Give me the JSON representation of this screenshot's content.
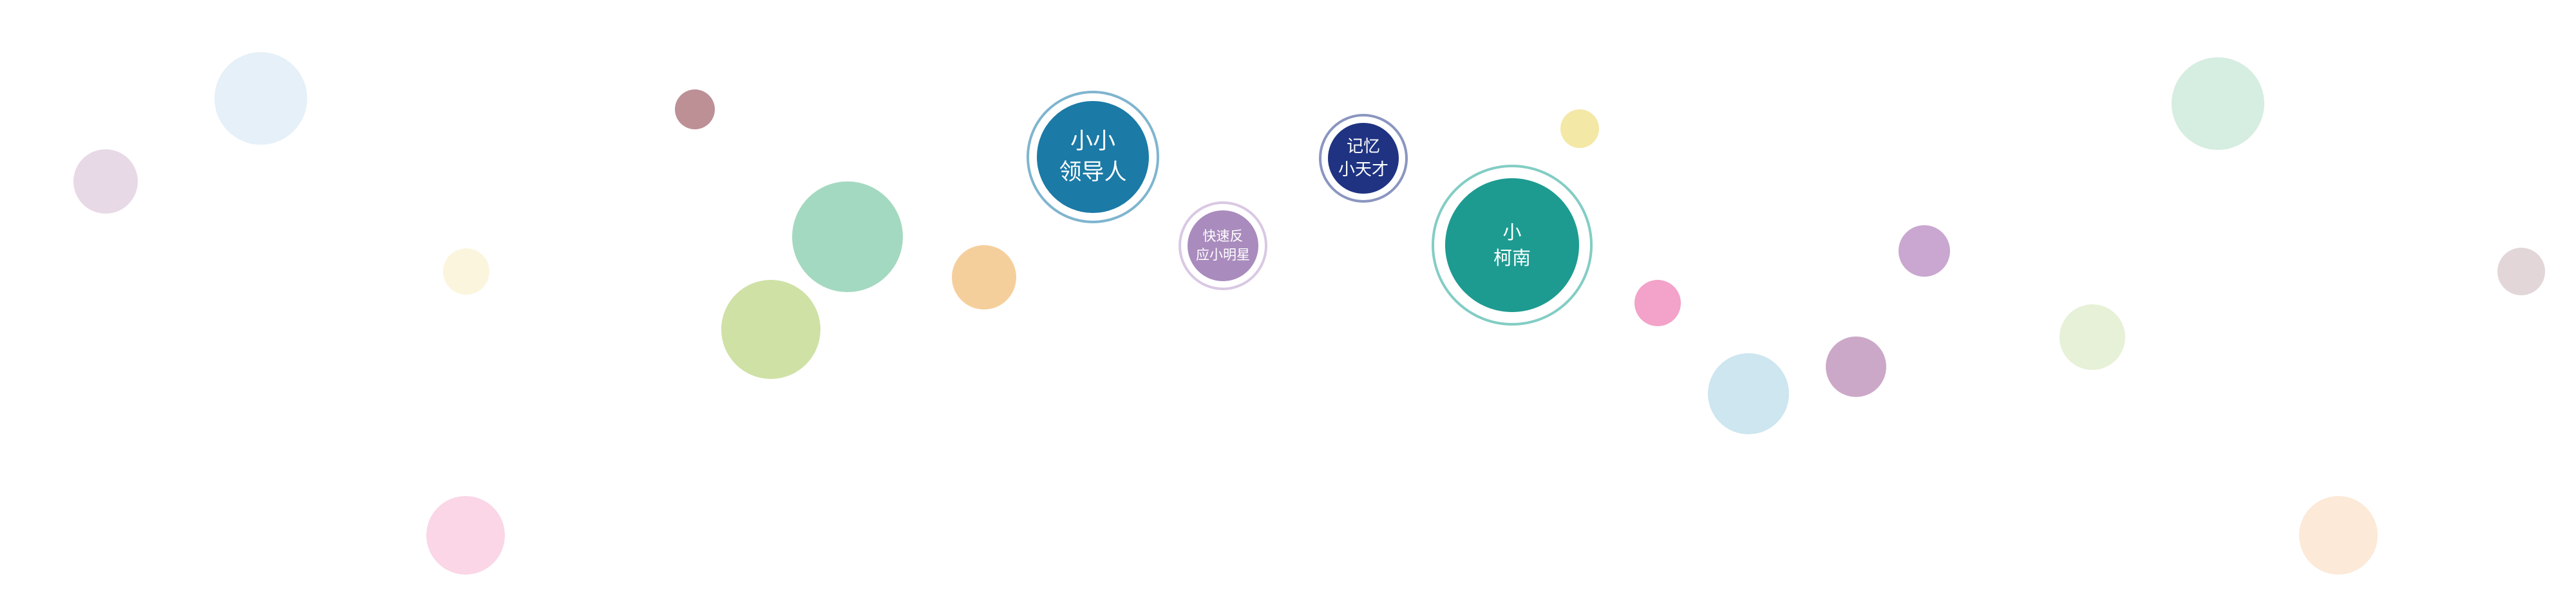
{
  "badges": {
    "leader": {
      "line1": "小小",
      "line2": "领导人",
      "color": "#1b7aa6",
      "ring_color": "#7fb5cf"
    },
    "quick": {
      "line1": "快速反",
      "line2": "应小明星",
      "color": "#a98bbd",
      "ring_color": "#d9c8e3"
    },
    "memory": {
      "line1": "记忆",
      "line2": "小天才",
      "color": "#1f3382",
      "ring_color": "#8a96bf"
    },
    "conan": {
      "line1": "小",
      "line2": "柯南",
      "color": "#1d9b91",
      "ring_color": "#82cdc4"
    }
  },
  "bubble_colors": [
    "#e8d9e6",
    "#e5f0f8",
    "#fbf5dd",
    "#fad6e6",
    "#bc9095",
    "#a3d9c0",
    "#cfe1a5",
    "#f5cf9b",
    "#f4e8a6",
    "#f3a2c9",
    "#cde6f0",
    "#cca8c8",
    "#c9a7d0",
    "#e6f1d8",
    "#d6ede1",
    "#fce9d7",
    "#e2d6d9"
  ]
}
